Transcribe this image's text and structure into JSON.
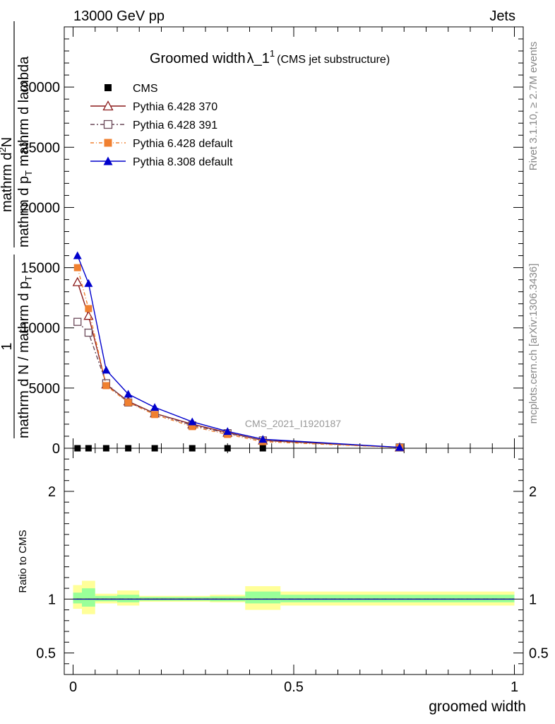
{
  "header": {
    "left": "13000 GeV pp",
    "right": "Jets"
  },
  "side_labels": {
    "rivet": "Rivet 3.1.10, ≥ 2.7M events",
    "site": "mcplots.cern.ch [arXiv:1306.3436]"
  },
  "title": {
    "main": "Groomed width",
    "lambda": "λ_1",
    "sup": "1",
    "sub": "(CMS jet substructure)"
  },
  "watermark": "CMS_2021_I1920187",
  "y_label": {
    "frac_num": "1",
    "frac_den": "mathrm d N / mathrm d p",
    "frac_den_sub": "T",
    "rhs_num": "mathrm d",
    "rhs_num_sup": "2",
    "rhs_num_rest": "N",
    "rhs_den": "mathrm d p",
    "rhs_den_sub": "T",
    "rhs_den_rest": " mathrm d lambda"
  },
  "ratio_ylabel": "Ratio to CMS",
  "x_label": "groomed width",
  "colors": {
    "cms": "#000000",
    "p370": "#8b1a1a",
    "p391": "#6b4a5a",
    "pdef": "#f08030",
    "p8": "#0000cc",
    "band_inner": "#99ff99",
    "band_outer": "#ffff99"
  },
  "chart_data": {
    "type": "line",
    "x_axis": {
      "range": [
        -0.02,
        1.02
      ],
      "ticks": [
        0,
        0.5,
        1
      ],
      "tick_labels": [
        "0",
        "0.5",
        "1"
      ]
    },
    "main_y": {
      "range": [
        0,
        35000
      ],
      "ticks": [
        0,
        5000,
        10000,
        15000,
        20000,
        25000,
        30000
      ],
      "tick_labels": [
        "0",
        "5000",
        "10000",
        "15000",
        "20000",
        "25000",
        "30000"
      ]
    },
    "ratio_y": {
      "range": [
        0.3,
        2.4
      ],
      "ticks": [
        0.5,
        1,
        2
      ],
      "tick_labels": [
        "0.5",
        "1",
        "2"
      ]
    },
    "series": [
      {
        "name": "CMS",
        "key": "cms",
        "marker": "square-filled",
        "x": [
          0.01,
          0.035,
          0.075,
          0.125,
          0.185,
          0.27,
          0.35,
          0.43,
          0.74
        ],
        "y": [
          0,
          0,
          0,
          0,
          0,
          0,
          0,
          0,
          0
        ]
      },
      {
        "name": "Pythia 6.428 370",
        "key": "p370",
        "marker": "triangle-open",
        "dash": "",
        "x": [
          0.01,
          0.035,
          0.075,
          0.125,
          0.185,
          0.27,
          0.35,
          0.43,
          0.74
        ],
        "y": [
          13800,
          11000,
          5300,
          3900,
          2900,
          2000,
          1300,
          650,
          70
        ]
      },
      {
        "name": "Pythia 6.428 391",
        "key": "p391",
        "marker": "square-open",
        "dash": "6,3,2,3",
        "x": [
          0.01,
          0.035,
          0.075,
          0.125,
          0.185,
          0.27,
          0.35,
          0.43,
          0.74
        ],
        "y": [
          10500,
          9600,
          5400,
          3800,
          2900,
          1900,
          1250,
          650,
          70
        ]
      },
      {
        "name": "Pythia 6.428 default",
        "key": "pdef",
        "marker": "square-filled",
        "dash": "5,3,1,3",
        "x": [
          0.01,
          0.035,
          0.075,
          0.125,
          0.185,
          0.27,
          0.35,
          0.43,
          0.74
        ],
        "y": [
          15000,
          11600,
          5200,
          3800,
          2800,
          1800,
          1150,
          550,
          60
        ]
      },
      {
        "name": "Pythia 8.308 default",
        "key": "p8",
        "marker": "triangle-filled",
        "dash": "",
        "x": [
          0.01,
          0.035,
          0.075,
          0.125,
          0.185,
          0.27,
          0.35,
          0.43,
          0.74
        ],
        "y": [
          16000,
          13700,
          6500,
          4500,
          3400,
          2200,
          1400,
          750,
          75
        ]
      }
    ],
    "ratio_bands": [
      {
        "x0": 0.0,
        "x1": 0.02,
        "inner": [
          0.96,
          1.06
        ],
        "outer": [
          0.91,
          1.13
        ]
      },
      {
        "x0": 0.02,
        "x1": 0.05,
        "inner": [
          0.93,
          1.1
        ],
        "outer": [
          0.86,
          1.17
        ]
      },
      {
        "x0": 0.05,
        "x1": 0.1,
        "inner": [
          0.98,
          1.03
        ],
        "outer": [
          0.96,
          1.05
        ]
      },
      {
        "x0": 0.1,
        "x1": 0.15,
        "inner": [
          0.97,
          1.04
        ],
        "outer": [
          0.94,
          1.08
        ]
      },
      {
        "x0": 0.15,
        "x1": 0.22,
        "inner": [
          0.985,
          1.02
        ],
        "outer": [
          0.975,
          1.03
        ]
      },
      {
        "x0": 0.22,
        "x1": 0.31,
        "inner": [
          0.985,
          1.02
        ],
        "outer": [
          0.975,
          1.03
        ]
      },
      {
        "x0": 0.31,
        "x1": 0.39,
        "inner": [
          0.98,
          1.025
        ],
        "outer": [
          0.97,
          1.04
        ]
      },
      {
        "x0": 0.39,
        "x1": 0.47,
        "inner": [
          0.96,
          1.07
        ],
        "outer": [
          0.9,
          1.12
        ]
      },
      {
        "x0": 0.47,
        "x1": 1.0,
        "inner": [
          0.97,
          1.04
        ],
        "outer": [
          0.94,
          1.07
        ]
      }
    ],
    "legend_position": "top-left"
  }
}
